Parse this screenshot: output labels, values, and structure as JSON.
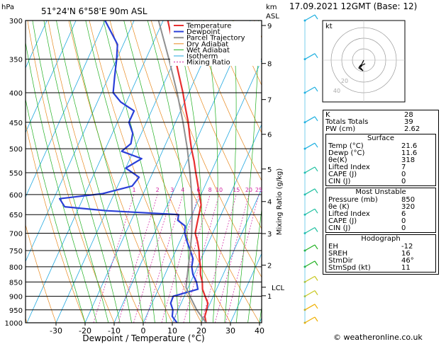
{
  "header": {
    "hpa_label": "hPa",
    "station": "51°24'N  6°58'E  90m  ASL",
    "km_label": "km",
    "asl_label": "ASL",
    "datetime": "17.09.2021  12GMT  (Base: 12)"
  },
  "legend": [
    {
      "label": "Temperature",
      "color": "#e83030"
    },
    {
      "label": "Dewpoint",
      "color": "#2a3fd8"
    },
    {
      "label": "Parcel Trajectory",
      "color": "#909090"
    },
    {
      "label": "Dry Adiabat",
      "color": "#e88a20"
    },
    {
      "label": "Wet Adiabat",
      "color": "#20b020"
    },
    {
      "label": "Isotherm",
      "color": "#20a8e0"
    },
    {
      "label": "Mixing Ratio",
      "color": "#d020a0"
    }
  ],
  "chart_data": {
    "type": "line",
    "xlabel": "Dewpoint / Temperature (°C)",
    "ylabel_right": "Mixing Ratio (g/kg)",
    "x_ticks": [
      "-30",
      "-20",
      "-10",
      "0",
      "10",
      "20",
      "30",
      "40"
    ],
    "x_tick_values": [
      -30,
      -20,
      -10,
      0,
      10,
      20,
      30,
      40
    ],
    "pressure_levels": [
      300,
      350,
      400,
      450,
      500,
      550,
      600,
      650,
      700,
      750,
      800,
      850,
      900,
      950,
      1000
    ],
    "pressure_labels": [
      "300",
      "350",
      "400",
      "450",
      "500",
      "550",
      "600",
      "650",
      "700",
      "750",
      "800",
      "850",
      "900",
      "950",
      "1000"
    ],
    "km_ticks": [
      {
        "label": "9",
        "p": 306
      },
      {
        "label": "8",
        "p": 356
      },
      {
        "label": "7",
        "p": 411
      },
      {
        "label": "6",
        "p": 472
      },
      {
        "label": "5",
        "p": 542
      },
      {
        "label": "4",
        "p": 617
      },
      {
        "label": "3",
        "p": 701
      },
      {
        "label": "2",
        "p": 795
      },
      {
        "label": "1",
        "p": 898
      }
    ],
    "lcl": {
      "label": "LCL",
      "p": 868
    },
    "mixing_ratio_labels": [
      {
        "label": "1",
        "w": 1
      },
      {
        "label": "2",
        "w": 2
      },
      {
        "label": "3",
        "w": 3
      },
      {
        "label": "4",
        "w": 4
      },
      {
        "label": "6",
        "w": 6
      },
      {
        "label": "8",
        "w": 8
      },
      {
        "label": "10",
        "w": 10
      },
      {
        "label": "15",
        "w": 15
      },
      {
        "label": "20",
        "w": 20
      },
      {
        "label": "25",
        "w": 25
      }
    ],
    "series": [
      {
        "name": "Temperature",
        "color": "#e83030",
        "points": [
          [
            1000,
            21.6
          ],
          [
            975,
            20.2
          ],
          [
            950,
            19.8
          ],
          [
            925,
            19.2
          ],
          [
            900,
            17.2
          ],
          [
            875,
            15.2
          ],
          [
            850,
            14.0
          ],
          [
            825,
            12.2
          ],
          [
            800,
            11.0
          ],
          [
            775,
            9.4
          ],
          [
            750,
            8.0
          ],
          [
            725,
            6.2
          ],
          [
            700,
            4.0
          ],
          [
            675,
            3.2
          ],
          [
            650,
            2.4
          ],
          [
            625,
            1.6
          ],
          [
            600,
            -0.6
          ],
          [
            575,
            -2.8
          ],
          [
            550,
            -5.2
          ],
          [
            525,
            -7.6
          ],
          [
            500,
            -10.4
          ],
          [
            475,
            -13.0
          ],
          [
            450,
            -15.6
          ],
          [
            425,
            -18.8
          ],
          [
            400,
            -22.0
          ],
          [
            375,
            -25.8
          ],
          [
            350,
            -29.8
          ],
          [
            325,
            -33.8
          ],
          [
            300,
            -38.4
          ]
        ]
      },
      {
        "name": "Dewpoint",
        "color": "#2a3fd8",
        "points": [
          [
            1000,
            11.6
          ],
          [
            975,
            9.0
          ],
          [
            950,
            8.2
          ],
          [
            925,
            6.4
          ],
          [
            900,
            6.2
          ],
          [
            875,
            13.6
          ],
          [
            850,
            12.0
          ],
          [
            825,
            9.6
          ],
          [
            800,
            8.0
          ],
          [
            775,
            7.2
          ],
          [
            750,
            5.0
          ],
          [
            725,
            2.6
          ],
          [
            700,
            0.4
          ],
          [
            680,
            -0.6
          ],
          [
            665,
            -4.0
          ],
          [
            650,
            -4.6
          ],
          [
            640,
            -30.0
          ],
          [
            630,
            -45.0
          ],
          [
            610,
            -48.0
          ],
          [
            598,
            -34.0
          ],
          [
            580,
            -25.0
          ],
          [
            560,
            -24.0
          ],
          [
            540,
            -30.0
          ],
          [
            520,
            -26.0
          ],
          [
            505,
            -34.0
          ],
          [
            490,
            -32.0
          ],
          [
            470,
            -33.0
          ],
          [
            450,
            -36.0
          ],
          [
            430,
            -36.0
          ],
          [
            415,
            -42.0
          ],
          [
            400,
            -46.0
          ],
          [
            375,
            -48.0
          ],
          [
            350,
            -50.0
          ],
          [
            330,
            -52.0
          ],
          [
            300,
            -60.0
          ]
        ]
      },
      {
        "name": "Parcel Trajectory",
        "color": "#909090",
        "points": [
          [
            1000,
            21.6
          ],
          [
            950,
            16.4
          ],
          [
            900,
            12.0
          ],
          [
            868,
            9.2
          ],
          [
            850,
            8.6
          ],
          [
            800,
            6.8
          ],
          [
            750,
            5.0
          ],
          [
            700,
            2.8
          ],
          [
            650,
            0.0
          ],
          [
            600,
            -3.2
          ],
          [
            550,
            -7.2
          ],
          [
            500,
            -11.8
          ],
          [
            450,
            -17.4
          ],
          [
            400,
            -24.0
          ],
          [
            350,
            -32.0
          ],
          [
            300,
            -41.6
          ]
        ]
      }
    ]
  },
  "hodograph": {
    "kt_label": "kt",
    "ring_labels": [
      "40",
      "20"
    ]
  },
  "indices": [
    {
      "label": "K",
      "value": "28"
    },
    {
      "label": "Totals Totals",
      "value": "39"
    },
    {
      "label": "PW (cm)",
      "value": "2.62"
    }
  ],
  "surface": {
    "title": "Surface",
    "rows": [
      {
        "label": "Temp (°C)",
        "value": "21.6"
      },
      {
        "label": "Dewp (°C)",
        "value": "11.6"
      },
      {
        "label": "θe(K)",
        "value": "318"
      },
      {
        "label": "Lifted Index",
        "value": "7"
      },
      {
        "label": "CAPE (J)",
        "value": "0"
      },
      {
        "label": "CIN (J)",
        "value": "0"
      }
    ]
  },
  "most_unstable": {
    "title": "Most Unstable",
    "rows": [
      {
        "label": "Pressure (mb)",
        "value": "850"
      },
      {
        "label": "θe (K)",
        "value": "320"
      },
      {
        "label": "Lifted Index",
        "value": "6"
      },
      {
        "label": "CAPE (J)",
        "value": "0"
      },
      {
        "label": "CIN (J)",
        "value": "0"
      }
    ]
  },
  "hodograph_table": {
    "title": "Hodograph",
    "rows": [
      {
        "label": "EH",
        "value": "-12"
      },
      {
        "label": "SREH",
        "value": "16"
      },
      {
        "label": "StmDir",
        "value": "46°"
      },
      {
        "label": "StmSpd (kt)",
        "value": "11"
      }
    ]
  },
  "credit": "© weatheronline.co.uk"
}
